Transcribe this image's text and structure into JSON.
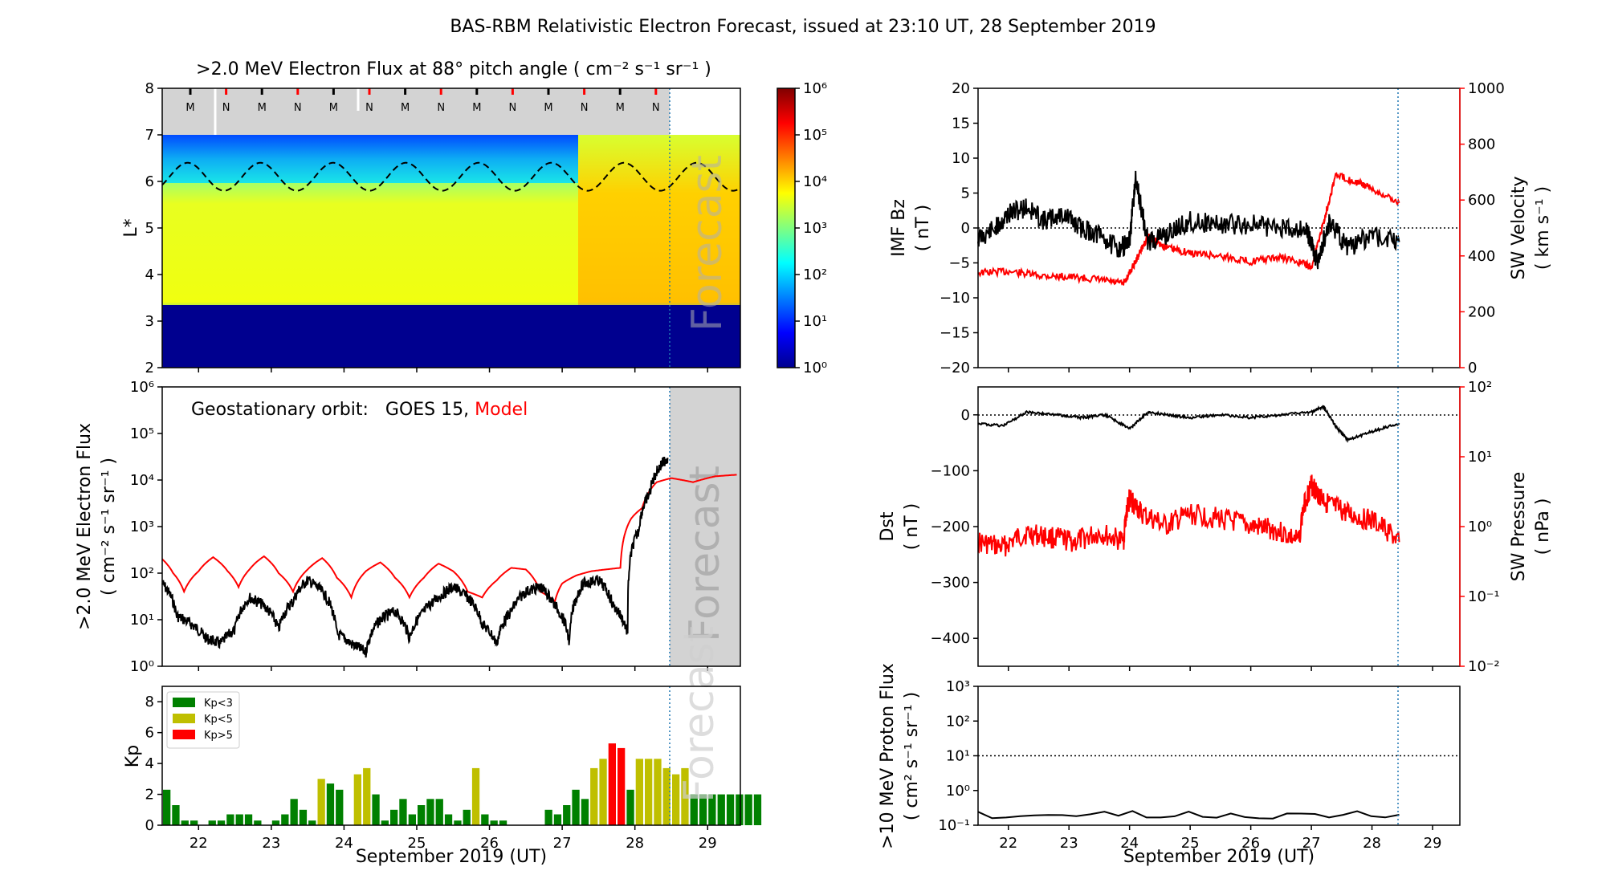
{
  "figure": {
    "title": "BAS-RBM Relativistic Electron Forecast, issued at 23:10 UT, 28 September 2019",
    "xlabel": "September 2019 (UT)",
    "forecast_label": "Forecast",
    "days": [
      "22",
      "23",
      "24",
      "25",
      "26",
      "27",
      "28",
      "29"
    ]
  },
  "colors": {
    "observed": "#000000",
    "model": "#ff0000",
    "forecast_line": "#1f77b4",
    "forecast_shade": "#d3d3d3",
    "kp_low": "#008000",
    "kp_mid": "#bfbf00",
    "kp_high": "#ff0000"
  },
  "chart_data": [
    {
      "id": "flux_map",
      "type": "heatmap",
      "title": ">2.0 MeV Electron Flux at 88°  pitch angle ( cm⁻² s⁻¹ sr⁻¹ )",
      "ylabel": "L*",
      "xlim": [
        21.5,
        29.45
      ],
      "ylim": [
        2,
        8
      ],
      "yticks": [
        "2",
        "3",
        "4",
        "5",
        "6",
        "7",
        "8"
      ],
      "colorbar": {
        "scale": "log",
        "range": [
          1,
          1000000
        ],
        "ticks": [
          "10⁰",
          "10¹",
          "10²",
          "10³",
          "10⁴",
          "10⁵",
          "10⁶"
        ]
      },
      "markers": [
        "M",
        "N",
        "M",
        "N",
        "M",
        "N",
        "M",
        "N",
        "M",
        "N",
        "M",
        "N",
        "M",
        "N"
      ],
      "magnetopause_L": {
        "mean": 6.1,
        "amplitude": 0.3,
        "period_days": 1
      }
    },
    {
      "id": "geo_flux",
      "type": "line",
      "legend_prefix": "Geostationary orbit:",
      "ylabel": ">2.0 MeV Electron Flux",
      "ylabel_units": "( cm⁻² s⁻¹ sr⁻¹ )",
      "yscale": "log",
      "ylim": [
        1,
        1000000
      ],
      "yticks": [
        "10⁰",
        "10¹",
        "10²",
        "10³",
        "10⁴",
        "10⁵",
        "10⁶"
      ],
      "series": [
        {
          "name": "GOES 15",
          "x": [
            21.5,
            21.7,
            21.9,
            22.1,
            22.3,
            22.5,
            22.7,
            22.9,
            23.1,
            23.3,
            23.5,
            23.7,
            23.9,
            24.1,
            24.3,
            24.5,
            24.7,
            24.9,
            25.1,
            25.3,
            25.5,
            25.7,
            25.9,
            26.1,
            26.3,
            26.5,
            26.7,
            26.9,
            27.1,
            27.3,
            27.5,
            27.7,
            27.9,
            28.05,
            28.2,
            28.35,
            28.45
          ],
          "y": [
            60,
            12,
            8,
            4,
            3,
            6,
            30,
            20,
            6,
            25,
            70,
            40,
            5,
            3,
            2,
            10,
            15,
            4,
            15,
            30,
            50,
            30,
            8,
            3,
            15,
            40,
            50,
            20,
            3,
            60,
            70,
            20,
            5,
            800,
            5000,
            20000,
            30000
          ]
        },
        {
          "name": "Model",
          "x": [
            21.5,
            21.65,
            21.8,
            22.0,
            22.2,
            22.4,
            22.55,
            22.7,
            22.9,
            23.1,
            23.3,
            23.5,
            23.7,
            23.9,
            24.1,
            24.3,
            24.5,
            24.7,
            24.9,
            25.1,
            25.3,
            25.5,
            25.7,
            25.9,
            26.1,
            26.3,
            26.5,
            26.7,
            26.9,
            27.0,
            27.2,
            27.4,
            27.6,
            27.8,
            27.95,
            28.1,
            28.3,
            28.5,
            28.8,
            29.1,
            29.4
          ],
          "y": [
            200,
            100,
            40,
            110,
            220,
            110,
            50,
            120,
            230,
            100,
            40,
            120,
            210,
            80,
            30,
            110,
            170,
            80,
            30,
            80,
            160,
            110,
            40,
            30,
            70,
            130,
            120,
            40,
            25,
            60,
            90,
            110,
            120,
            130,
            1500,
            2500,
            9000,
            11000,
            9000,
            12000,
            13000
          ]
        }
      ]
    },
    {
      "id": "kp",
      "type": "bar",
      "ylabel": "Kp",
      "ylim": [
        0,
        9
      ],
      "yticks": [
        "0",
        "2",
        "4",
        "6",
        "8"
      ],
      "legend": [
        "Kp<3",
        "Kp<5",
        "Kp>5"
      ],
      "bar_width_days": 0.125,
      "start": 21.5,
      "values": [
        2.3,
        1.3,
        0.3,
        0.3,
        0.0,
        0.3,
        0.3,
        0.7,
        0.7,
        0.7,
        0.3,
        0.0,
        0.3,
        0.7,
        1.7,
        1.0,
        0.3,
        3.0,
        2.7,
        2.3,
        0.0,
        3.3,
        3.7,
        2.0,
        0.3,
        1.0,
        1.7,
        0.7,
        1.3,
        1.7,
        1.7,
        0.7,
        0.3,
        1.0,
        3.7,
        0.7,
        0.3,
        0.3,
        0.0,
        0.0,
        0.0,
        0.0,
        1.0,
        0.7,
        1.3,
        2.3,
        1.7,
        3.7,
        4.3,
        5.3,
        5.0,
        2.3,
        4.3,
        4.3,
        4.3,
        3.7,
        3.3,
        3.7,
        2.0,
        2.0,
        2.0,
        2.0,
        2.0,
        2.0,
        2.0,
        2.0
      ]
    },
    {
      "id": "imf",
      "type": "line",
      "ylabel": "IMF Bz",
      "ylabel_units": "( nT )",
      "ylim": [
        -20,
        20
      ],
      "yticks": [
        "−20",
        "−15",
        "−10",
        "−5",
        "0",
        "5",
        "10",
        "15",
        "20"
      ],
      "y2label": "SW Velocity",
      "y2label_units": "( km s⁻¹ )",
      "y2lim": [
        0,
        1000
      ],
      "y2ticks": [
        "0",
        "200",
        "400",
        "600",
        "800",
        "1000"
      ],
      "series": [
        {
          "name": "IMF Bz",
          "x": [
            21.5,
            21.8,
            22.0,
            22.3,
            22.6,
            22.9,
            23.2,
            23.5,
            23.8,
            24.0,
            24.1,
            24.3,
            24.6,
            25.0,
            25.5,
            26.0,
            26.5,
            26.9,
            27.0,
            27.1,
            27.3,
            27.6,
            28.0,
            28.45
          ],
          "y": [
            -1.5,
            0,
            2,
            3,
            1,
            2,
            0,
            -1,
            -3,
            -2,
            7,
            -2,
            -1,
            1,
            0.5,
            0.5,
            0,
            0,
            -2,
            -5,
            1,
            -3,
            -1,
            -2
          ]
        },
        {
          "name": "SW Velocity",
          "x": [
            21.5,
            22.0,
            22.5,
            23.0,
            23.5,
            23.9,
            24.1,
            24.3,
            24.6,
            25.0,
            25.5,
            26.0,
            26.5,
            26.9,
            27.0,
            27.2,
            27.4,
            27.8,
            28.0,
            28.45
          ],
          "y": [
            340,
            345,
            330,
            325,
            315,
            300,
            380,
            470,
            430,
            410,
            400,
            380,
            395,
            370,
            360,
            520,
            690,
            660,
            640,
            590
          ]
        }
      ]
    },
    {
      "id": "dst",
      "type": "line",
      "ylabel": "Dst",
      "ylabel_units": "( nT )",
      "ylim": [
        -450,
        50
      ],
      "yticks": [
        "−400",
        "−300",
        "−200",
        "−100",
        "0"
      ],
      "y2label": "SW Pressure",
      "y2label_units": "( nPa )",
      "y2scale": "log",
      "y2lim": [
        0.01,
        100
      ],
      "y2ticks": [
        "10⁻²",
        "10⁻¹",
        "10⁰",
        "10¹",
        "10²"
      ],
      "series": [
        {
          "name": "Dst",
          "x": [
            21.5,
            21.9,
            22.3,
            22.8,
            23.2,
            23.6,
            24.0,
            24.3,
            24.6,
            25.0,
            25.5,
            26.0,
            26.5,
            27.0,
            27.2,
            27.4,
            27.6,
            28.0,
            28.45
          ],
          "y": [
            -15,
            -20,
            5,
            0,
            -5,
            0,
            -25,
            5,
            0,
            -5,
            0,
            -5,
            0,
            5,
            15,
            -20,
            -45,
            -30,
            -15
          ]
        },
        {
          "name": "SW Pressure",
          "x": [
            21.5,
            21.9,
            22.3,
            22.7,
            23.1,
            23.5,
            23.9,
            24.0,
            24.2,
            24.6,
            25.0,
            25.5,
            26.0,
            26.4,
            26.8,
            27.0,
            27.1,
            27.3,
            27.6,
            28.0,
            28.45
          ],
          "y": [
            0.6,
            0.5,
            0.8,
            0.7,
            0.6,
            0.8,
            0.6,
            2.5,
            1.5,
            1.0,
            1.5,
            1.3,
            1.0,
            0.9,
            0.6,
            4.0,
            3.0,
            2.0,
            1.5,
            1.2,
            0.6
          ]
        }
      ]
    },
    {
      "id": "proton",
      "type": "line",
      "ylabel": ">10 MeV Proton Flux",
      "ylabel_units": "( cm² s⁻¹ sr⁻¹ )",
      "yscale": "log",
      "ylim": [
        0.1,
        1000
      ],
      "yticks": [
        "10⁻¹",
        "10⁰",
        "10¹",
        "10²",
        "10³"
      ],
      "threshold": 10,
      "series": [
        {
          "name": "Proton flux",
          "x": [
            21.5,
            28.45
          ],
          "y": [
            0.2,
            0.2
          ]
        }
      ]
    }
  ]
}
